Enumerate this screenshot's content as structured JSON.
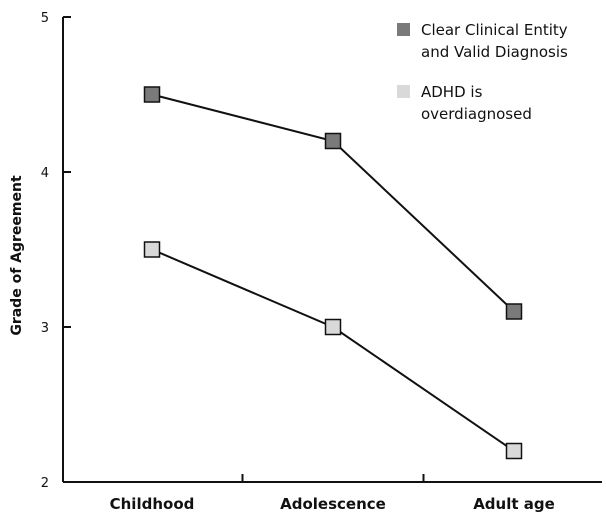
{
  "chart_data": {
    "type": "line",
    "categories": [
      "Childhood",
      "Adolescence",
      "Adult age"
    ],
    "ylabel": "Grade of Agreement",
    "xlabel": "",
    "ylim": [
      2,
      5
    ],
    "yticks": [
      2,
      3,
      4,
      5
    ],
    "grid": false,
    "legend_position": "top-right",
    "series": [
      {
        "name": "Clear Clinical Entity and Valid Diagnosis",
        "legend_lines": [
          "Clear Clinical Entity",
          "and Valid Diagnosis"
        ],
        "values": [
          4.5,
          4.2,
          3.1
        ],
        "color": "#7a7a7a"
      },
      {
        "name": "ADHD is overdiagnosed",
        "legend_lines": [
          "ADHD is",
          "overdiagnosed"
        ],
        "values": [
          3.5,
          3.0,
          2.2
        ],
        "color": "#d9d9d9"
      }
    ]
  }
}
